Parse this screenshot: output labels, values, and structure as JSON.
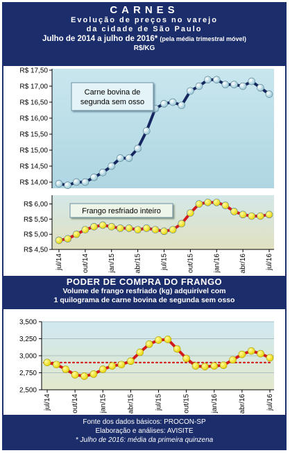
{
  "header": {
    "title": "CARNES",
    "subtitle_line1": "Evolução de preços no varejo",
    "subtitle_line2": "da cidade de São Paulo",
    "period": "Julho de 2014 a julho de 2016*",
    "period_note": "(pela média trimestral móvel)",
    "unit": "R$/KG"
  },
  "middle": {
    "title": "PODER DE COMPRA DO FRANGO",
    "line1": "Volume de frango resfriado (kg) adquirível com",
    "line2": "1 quilograma de carne bovina de segunda sem osso"
  },
  "footer": {
    "line1": "Fonte dos dados básicos: PROCON-SP",
    "line2": "Elaboração e análises: AVISITE",
    "line3": "* Julho de 2016: média da primeira quinzena"
  },
  "colors": {
    "navy": "#1c2d6b",
    "beef_line": "#16275f",
    "chicken_line": "#d41a1a",
    "marker_yellow": "#ffee00",
    "marker_grey": "#b9dce6",
    "plot_bg_top": "#c8e4ec",
    "plot_bg_bottom": "#d9dfc8"
  },
  "chart_data": [
    {
      "type": "line",
      "x": [
        "jul/14",
        "ago/14",
        "set/14",
        "out/14",
        "nov/14",
        "dez/14",
        "jan/15",
        "fev/15",
        "mar/15",
        "abr/15",
        "mai/15",
        "jun/15",
        "jul/15",
        "ago/15",
        "set/15",
        "out/15",
        "nov/15",
        "dez/15",
        "jan/16",
        "fev/16",
        "mar/16",
        "abr/16",
        "mai/16",
        "jun/16",
        "jul/16"
      ],
      "x_tick_labels": [
        "jul/14",
        "out/14",
        "jan/15",
        "abr/15",
        "jul/15",
        "out/15",
        "jan/16",
        "abr/16",
        "jul/16"
      ],
      "series": [
        {
          "name": "Carne bovina de segunda sem osso",
          "values": [
            13.95,
            13.9,
            14.0,
            14.0,
            14.15,
            14.3,
            14.5,
            14.75,
            14.75,
            15.05,
            15.6,
            16.3,
            16.45,
            16.5,
            16.4,
            16.85,
            17.0,
            17.2,
            17.2,
            17.05,
            17.05,
            17.0,
            17.15,
            16.95,
            16.75
          ]
        },
        {
          "name": "Frango resfriado inteiro",
          "values": [
            4.8,
            4.85,
            5.0,
            5.15,
            5.25,
            5.3,
            5.25,
            5.2,
            5.2,
            5.15,
            5.2,
            5.15,
            5.1,
            5.15,
            5.35,
            5.7,
            6.0,
            6.05,
            6.05,
            5.95,
            5.75,
            5.65,
            5.6,
            5.6,
            5.65
          ]
        }
      ],
      "y_tick_labels_top": [
        "R$ 17,50",
        "R$ 17,00",
        "R$ 16,50",
        "R$ 16,00",
        "R$ 15,50",
        "R$ 15,00",
        "R$ 14,50",
        "R$ 14,00"
      ],
      "y_tick_labels_bottom": [
        "R$ 6,00",
        "R$ 5,50",
        "R$ 5,00",
        "R$ 4,50"
      ],
      "ylim_top": [
        13.85,
        17.5
      ],
      "ylim_bottom": [
        4.5,
        6.15
      ],
      "axis_break": true,
      "grid": false
    },
    {
      "type": "line",
      "title": "PODER DE COMPRA DO FRANGO",
      "x": [
        "jul/14",
        "ago/14",
        "set/14",
        "out/14",
        "nov/14",
        "dez/14",
        "jan/15",
        "fev/15",
        "mar/15",
        "abr/15",
        "mai/15",
        "jun/15",
        "jul/15",
        "ago/15",
        "set/15",
        "out/15",
        "nov/15",
        "dez/15",
        "jan/16",
        "fev/16",
        "mar/16",
        "abr/16",
        "mai/16",
        "jun/16",
        "jul/16"
      ],
      "x_tick_labels": [
        "jul/14",
        "out/14",
        "jan/15",
        "abr/15",
        "jul/15",
        "out/15",
        "jan/16",
        "abr/16",
        "jul/16"
      ],
      "series": [
        {
          "values": [
            2.9,
            2.87,
            2.8,
            2.72,
            2.7,
            2.73,
            2.8,
            2.85,
            2.87,
            2.92,
            3.05,
            3.17,
            3.23,
            3.24,
            3.1,
            2.96,
            2.85,
            2.84,
            2.85,
            2.86,
            2.94,
            3.02,
            3.07,
            3.03,
            2.97
          ]
        }
      ],
      "reference_line": 2.9,
      "y_tick_labels": [
        "3,500",
        "3,250",
        "3,000",
        "2,750",
        "2,500"
      ],
      "ylim": [
        2.5,
        3.5
      ],
      "grid": true
    }
  ]
}
